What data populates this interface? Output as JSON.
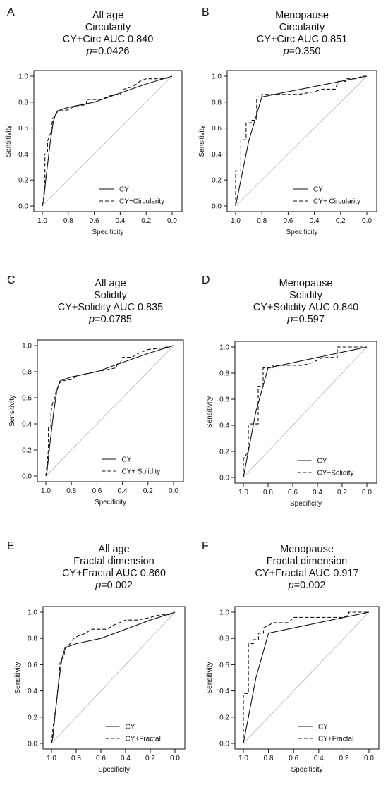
{
  "figure": {
    "axis_text": {
      "xlabel": "Specificity",
      "ylabel": "Sensitivity"
    }
  },
  "chart_data": [
    {
      "type": "line",
      "panel": "A",
      "title_lines": [
        "All age",
        "Circularity",
        "CY+Circ AUC 0.840"
      ],
      "p_value": "=0.0426",
      "xlabel": "Specificity",
      "ylabel": "Sensitivity",
      "xlim": [
        1.0,
        0.0
      ],
      "ylim": [
        0.0,
        1.0
      ],
      "xticks": [
        "1.0",
        "0.8",
        "0.6",
        "0.4",
        "0.2",
        "0.0"
      ],
      "yticks": [
        "0.0",
        "0.2",
        "0.4",
        "0.6",
        "0.8",
        "1.0"
      ],
      "reference_line": [
        [
          1.0,
          0.0
        ],
        [
          0.0,
          1.0
        ]
      ],
      "legend_position": "bottom-right",
      "series": [
        {
          "name": "CY",
          "style": "solid",
          "points": [
            [
              1.0,
              0.0
            ],
            [
              0.99,
              0.04
            ],
            [
              0.97,
              0.23
            ],
            [
              0.94,
              0.48
            ],
            [
              0.915,
              0.65
            ],
            [
              0.89,
              0.73
            ],
            [
              0.8,
              0.76
            ],
            [
              0.6,
              0.8
            ],
            [
              0.4,
              0.87
            ],
            [
              0.2,
              0.94
            ],
            [
              0.0,
              1.0
            ]
          ]
        },
        {
          "name": "CY+Circularity",
          "style": "dashed",
          "points": [
            [
              1.0,
              0.0
            ],
            [
              0.99,
              0.06
            ],
            [
              0.98,
              0.22
            ],
            [
              0.98,
              0.4
            ],
            [
              0.96,
              0.4
            ],
            [
              0.96,
              0.5
            ],
            [
              0.94,
              0.55
            ],
            [
              0.93,
              0.6
            ],
            [
              0.92,
              0.67
            ],
            [
              0.9,
              0.7
            ],
            [
              0.88,
              0.73
            ],
            [
              0.8,
              0.74
            ],
            [
              0.75,
              0.77
            ],
            [
              0.66,
              0.78
            ],
            [
              0.66,
              0.82
            ],
            [
              0.55,
              0.82
            ],
            [
              0.45,
              0.86
            ],
            [
              0.4,
              0.86
            ],
            [
              0.37,
              0.9
            ],
            [
              0.3,
              0.92
            ],
            [
              0.25,
              0.96
            ],
            [
              0.2,
              0.98
            ],
            [
              0.05,
              0.98
            ],
            [
              0.0,
              1.0
            ]
          ]
        }
      ]
    },
    {
      "type": "line",
      "panel": "B",
      "title_lines": [
        "Menopause",
        "Circularity",
        "CY+Circ AUC 0.851"
      ],
      "p_value": "=0.350",
      "xlabel": "Specificity",
      "ylabel": "Sensitivity",
      "xlim": [
        1.0,
        0.0
      ],
      "ylim": [
        0.0,
        1.0
      ],
      "xticks": [
        "1.0",
        "0.8",
        "0.6",
        "0.4",
        "0.2",
        "0.0"
      ],
      "yticks": [
        "0.0",
        "0.2",
        "0.4",
        "0.6",
        "0.8",
        "1.0"
      ],
      "reference_line": [
        [
          1.0,
          0.0
        ],
        [
          0.0,
          1.0
        ]
      ],
      "legend_position": "bottom-right",
      "series": [
        {
          "name": "CY",
          "style": "solid",
          "points": [
            [
              1.0,
              0.0
            ],
            [
              0.9,
              0.5
            ],
            [
              0.8,
              0.84
            ],
            [
              0.0,
              1.0
            ]
          ]
        },
        {
          "name": "CY+ Circularity",
          "style": "dashed",
          "points": [
            [
              1.0,
              0.0
            ],
            [
              1.0,
              0.27
            ],
            [
              0.96,
              0.27
            ],
            [
              0.96,
              0.51
            ],
            [
              0.92,
              0.51
            ],
            [
              0.92,
              0.64
            ],
            [
              0.88,
              0.64
            ],
            [
              0.88,
              0.66
            ],
            [
              0.84,
              0.66
            ],
            [
              0.84,
              0.84
            ],
            [
              0.8,
              0.84
            ],
            [
              0.8,
              0.86
            ],
            [
              0.52,
              0.86
            ],
            [
              0.4,
              0.88
            ],
            [
              0.34,
              0.9
            ],
            [
              0.24,
              0.9
            ],
            [
              0.22,
              0.96
            ],
            [
              0.16,
              0.96
            ],
            [
              0.16,
              0.98
            ],
            [
              0.08,
              0.98
            ],
            [
              0.04,
              1.0
            ],
            [
              0.0,
              1.0
            ]
          ]
        }
      ]
    },
    {
      "type": "line",
      "panel": "C",
      "title_lines": [
        "All age",
        "Solidity",
        "CY+Solidity AUC 0.835"
      ],
      "p_value": "=0.0785",
      "xlabel": "Specificity",
      "ylabel": "Sensitivity",
      "xlim": [
        1.0,
        0.0
      ],
      "ylim": [
        0.0,
        1.0
      ],
      "xticks": [
        "1.0",
        "0.8",
        "0.6",
        "0.4",
        "0.2",
        "0.0"
      ],
      "yticks": [
        "0.0",
        "0.2",
        "0.4",
        "0.6",
        "0.8",
        "1.0"
      ],
      "reference_line": [
        [
          1.0,
          0.0
        ],
        [
          0.0,
          1.0
        ]
      ],
      "legend_position": "bottom-right",
      "series": [
        {
          "name": "CY",
          "style": "solid",
          "points": [
            [
              1.0,
              0.0
            ],
            [
              0.99,
              0.04
            ],
            [
              0.97,
              0.23
            ],
            [
              0.94,
              0.48
            ],
            [
              0.915,
              0.65
            ],
            [
              0.89,
              0.73
            ],
            [
              0.8,
              0.76
            ],
            [
              0.6,
              0.8
            ],
            [
              0.4,
              0.87
            ],
            [
              0.2,
              0.94
            ],
            [
              0.0,
              1.0
            ]
          ]
        },
        {
          "name": "CY+ Solidity",
          "style": "dashed",
          "points": [
            [
              1.0,
              0.0
            ],
            [
              0.99,
              0.1
            ],
            [
              0.98,
              0.2
            ],
            [
              0.98,
              0.37
            ],
            [
              0.96,
              0.37
            ],
            [
              0.96,
              0.48
            ],
            [
              0.95,
              0.55
            ],
            [
              0.93,
              0.6
            ],
            [
              0.92,
              0.65
            ],
            [
              0.9,
              0.7
            ],
            [
              0.88,
              0.73
            ],
            [
              0.8,
              0.74
            ],
            [
              0.75,
              0.77
            ],
            [
              0.66,
              0.79
            ],
            [
              0.55,
              0.81
            ],
            [
              0.45,
              0.83
            ],
            [
              0.44,
              0.86
            ],
            [
              0.42,
              0.86
            ],
            [
              0.4,
              0.91
            ],
            [
              0.32,
              0.91
            ],
            [
              0.3,
              0.93
            ],
            [
              0.25,
              0.95
            ],
            [
              0.2,
              0.97
            ],
            [
              0.1,
              0.98
            ],
            [
              0.05,
              0.99
            ],
            [
              0.0,
              1.0
            ]
          ]
        }
      ]
    },
    {
      "type": "line",
      "panel": "D",
      "title_lines": [
        "Menopause",
        "Solidity",
        "CY+Solidity AUC 0.840"
      ],
      "p_value": "=0.597",
      "xlabel": "Specificity",
      "ylabel": "Sensitivity",
      "xlim": [
        1.0,
        0.0
      ],
      "ylim": [
        0.0,
        1.0
      ],
      "xticks": [
        "1.0",
        "0.8",
        "0.6",
        "0.4",
        "0.2",
        "0.0"
      ],
      "yticks": [
        "0.0",
        "0.2",
        "0.4",
        "0.6",
        "0.8",
        "1.0"
      ],
      "reference_line": [
        [
          1.0,
          0.0
        ],
        [
          0.0,
          1.0
        ]
      ],
      "legend_position": "bottom-right",
      "series": [
        {
          "name": "CY",
          "style": "solid",
          "points": [
            [
              1.0,
              0.0
            ],
            [
              0.9,
              0.5
            ],
            [
              0.8,
              0.84
            ],
            [
              0.0,
              1.0
            ]
          ]
        },
        {
          "name": "CY+Solidity",
          "style": "dashed",
          "points": [
            [
              1.0,
              0.0
            ],
            [
              1.0,
              0.14
            ],
            [
              0.96,
              0.2
            ],
            [
              0.96,
              0.41
            ],
            [
              0.88,
              0.41
            ],
            [
              0.88,
              0.7
            ],
            [
              0.84,
              0.7
            ],
            [
              0.84,
              0.84
            ],
            [
              0.76,
              0.84
            ],
            [
              0.76,
              0.86
            ],
            [
              0.56,
              0.86
            ],
            [
              0.52,
              0.86
            ],
            [
              0.44,
              0.88
            ],
            [
              0.4,
              0.9
            ],
            [
              0.36,
              0.92
            ],
            [
              0.24,
              0.92
            ],
            [
              0.24,
              1.0
            ],
            [
              0.0,
              1.0
            ]
          ]
        }
      ]
    },
    {
      "type": "line",
      "panel": "E",
      "title_lines": [
        "All age",
        "Fractal dimension",
        "CY+Fractal AUC 0.860"
      ],
      "p_value": "=0.002",
      "xlabel": "Specificity",
      "ylabel": "Sensitivity",
      "xlim": [
        1.0,
        0.0
      ],
      "ylim": [
        0.0,
        1.0
      ],
      "xticks": [
        "1.0",
        "0.8",
        "0.6",
        "0.4",
        "0.2",
        "0.0"
      ],
      "yticks": [
        "0.0",
        "0.2",
        "0.4",
        "0.6",
        "0.8",
        "1.0"
      ],
      "reference_line": [
        [
          1.0,
          0.0
        ],
        [
          0.0,
          1.0
        ]
      ],
      "legend_position": "bottom-right",
      "series": [
        {
          "name": "CY",
          "style": "solid",
          "points": [
            [
              1.0,
              0.0
            ],
            [
              0.99,
              0.04
            ],
            [
              0.97,
              0.23
            ],
            [
              0.94,
              0.48
            ],
            [
              0.915,
              0.65
            ],
            [
              0.89,
              0.73
            ],
            [
              0.8,
              0.76
            ],
            [
              0.6,
              0.8
            ],
            [
              0.4,
              0.87
            ],
            [
              0.2,
              0.94
            ],
            [
              0.0,
              1.0
            ]
          ]
        },
        {
          "name": "CY+Fractal",
          "style": "dashed",
          "points": [
            [
              1.0,
              0.0
            ],
            [
              0.99,
              0.1
            ],
            [
              0.98,
              0.18
            ],
            [
              0.96,
              0.3
            ],
            [
              0.95,
              0.4
            ],
            [
              0.94,
              0.5
            ],
            [
              0.93,
              0.62
            ],
            [
              0.9,
              0.66
            ],
            [
              0.89,
              0.72
            ],
            [
              0.85,
              0.76
            ],
            [
              0.82,
              0.8
            ],
            [
              0.78,
              0.82
            ],
            [
              0.72,
              0.84
            ],
            [
              0.68,
              0.87
            ],
            [
              0.55,
              0.87
            ],
            [
              0.5,
              0.9
            ],
            [
              0.4,
              0.94
            ],
            [
              0.3,
              0.94
            ],
            [
              0.2,
              0.96
            ],
            [
              0.12,
              0.98
            ],
            [
              0.05,
              0.98
            ],
            [
              0.0,
              1.0
            ]
          ]
        }
      ]
    },
    {
      "type": "line",
      "panel": "F",
      "title_lines": [
        "Menopause",
        "Fractal dimension",
        "CY+Fractal AUC 0.917"
      ],
      "p_value": "=0.002",
      "xlabel": "Specificity",
      "ylabel": "Sensitivity",
      "xlim": [
        1.0,
        0.0
      ],
      "ylim": [
        0.0,
        1.0
      ],
      "xticks": [
        "1.0",
        "0.8",
        "0.6",
        "0.4",
        "0.2",
        "0.0"
      ],
      "yticks": [
        "0.0",
        "0.2",
        "0.4",
        "0.6",
        "0.8",
        "1.0"
      ],
      "reference_line": [
        [
          1.0,
          0.0
        ],
        [
          0.0,
          1.0
        ]
      ],
      "legend_position": "bottom-right",
      "series": [
        {
          "name": "CY",
          "style": "solid",
          "points": [
            [
              1.0,
              0.0
            ],
            [
              0.9,
              0.5
            ],
            [
              0.8,
              0.84
            ],
            [
              0.0,
              1.0
            ]
          ]
        },
        {
          "name": "CY+Fractal",
          "style": "dashed",
          "points": [
            [
              1.0,
              0.0
            ],
            [
              1.0,
              0.38
            ],
            [
              0.96,
              0.38
            ],
            [
              0.96,
              0.76
            ],
            [
              0.92,
              0.76
            ],
            [
              0.92,
              0.79
            ],
            [
              0.88,
              0.79
            ],
            [
              0.88,
              0.84
            ],
            [
              0.84,
              0.84
            ],
            [
              0.84,
              0.88
            ],
            [
              0.8,
              0.9
            ],
            [
              0.76,
              0.92
            ],
            [
              0.64,
              0.92
            ],
            [
              0.6,
              0.96
            ],
            [
              0.2,
              0.96
            ],
            [
              0.16,
              0.98
            ],
            [
              0.16,
              1.0
            ],
            [
              0.0,
              1.0
            ]
          ]
        }
      ]
    }
  ]
}
